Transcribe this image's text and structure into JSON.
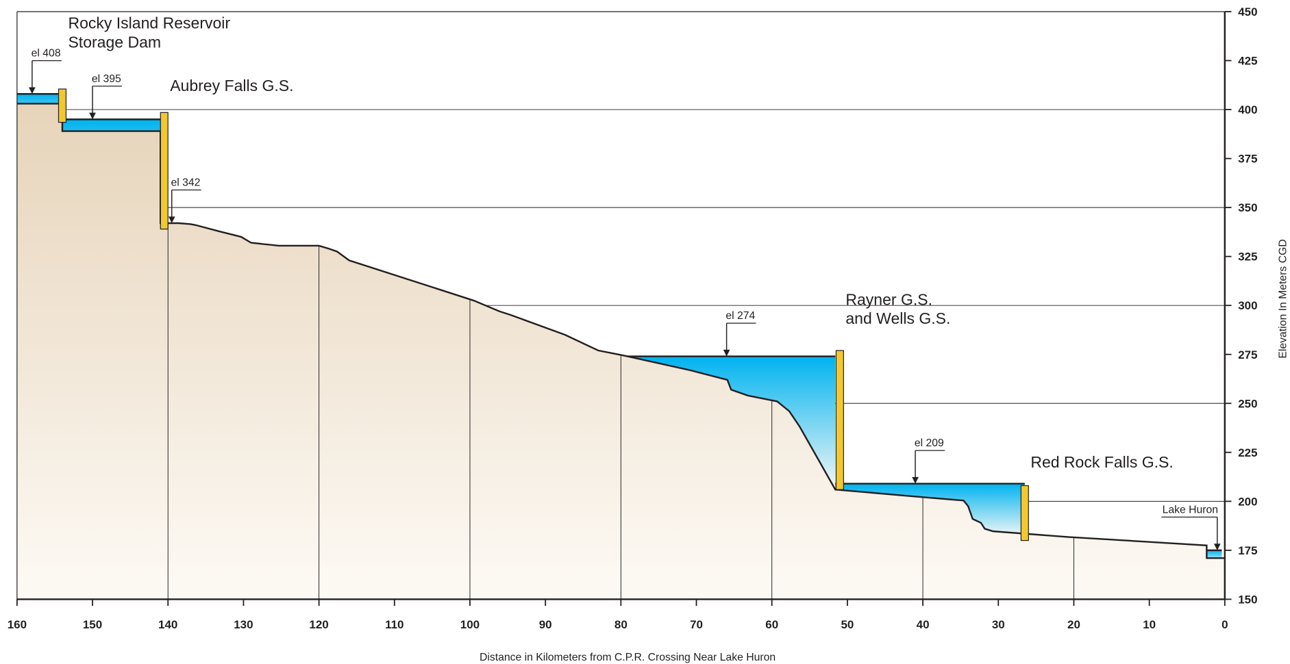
{
  "chart_data": {
    "type": "profile",
    "x_label": "Distance in Kilometers from C.P.R. Crossing Near Lake Huron",
    "y_label": "Elevation In Meters CGD",
    "xlim": [
      160,
      0
    ],
    "ylim": [
      150,
      450
    ],
    "xticks": [
      160,
      150,
      140,
      130,
      120,
      110,
      100,
      90,
      80,
      70,
      60,
      50,
      40,
      30,
      20,
      10,
      0
    ],
    "yticks": [
      150,
      175,
      200,
      225,
      250,
      275,
      300,
      325,
      350,
      375,
      400,
      425,
      450
    ],
    "grid_y": [
      400,
      350,
      300,
      250,
      200
    ],
    "grid_x": [
      140,
      120,
      100,
      80,
      60,
      40,
      20
    ],
    "terrain": {
      "color": "#e6d3b9",
      "x": [
        160,
        154,
        154,
        141,
        141,
        138.6,
        137,
        136.3,
        133.4,
        130.3,
        129,
        125.3,
        120,
        118.7,
        117.6,
        116,
        99.5,
        96.1,
        94.5,
        87.4,
        83,
        79.7,
        70.9,
        65.9,
        65.4,
        63.2,
        59.3,
        57.7,
        56.3,
        53.8,
        51.6,
        41.2,
        34.6,
        34,
        33.4,
        32.3,
        31.8,
        30.7,
        20.8,
        2.4,
        2.4,
        0
      ],
      "values": [
        403,
        403,
        389,
        389,
        342,
        342,
        341.5,
        341,
        338,
        335,
        332,
        330.5,
        330.5,
        329,
        327.5,
        323,
        302.5,
        297,
        295,
        285,
        277,
        274.5,
        267,
        262,
        257,
        254,
        251,
        246,
        238,
        221,
        206,
        202.5,
        200.4,
        197.5,
        191,
        189,
        186,
        184.7,
        181.8,
        177.5,
        171,
        171
      ]
    },
    "water_color": "#00b3f0",
    "dam_color": "#f2c830",
    "reservoirs": [
      {
        "label": "el 408",
        "level": 408,
        "from": 160,
        "to": 154,
        "arrow_x": 158
      },
      {
        "label": "el 395",
        "level": 395,
        "from": 154,
        "to": 141,
        "arrow_x": 150
      },
      {
        "label": "el 274",
        "level": 274,
        "from": 79.7,
        "to": 51.6,
        "arrow_x": 66
      },
      {
        "label": "el 209",
        "level": 209,
        "from": 51.6,
        "to": 26.5,
        "arrow_x": 41
      },
      {
        "label": "Lake Huron",
        "level": 175,
        "from": 2.4,
        "to": 0.4,
        "arrow_x": 1
      }
    ],
    "annotations": [
      {
        "label": "el 342",
        "x": 139.5,
        "value": 342
      }
    ],
    "dams": [
      {
        "name": [
          "Rocky Island Reservoir",
          "Storage Dam"
        ],
        "x": 154,
        "bottom": 393.5,
        "top": 410.5
      },
      {
        "name": [
          "Aubrey Falls G.S."
        ],
        "x": 140.5,
        "bottom": 339,
        "top": 398.5
      },
      {
        "name": [
          "Rayner G.S.",
          "and Wells G.S."
        ],
        "x": 51,
        "bottom": 206,
        "top": 277
      },
      {
        "name": [
          "Red Rock Falls G.S."
        ],
        "x": 26.5,
        "bottom": 180,
        "top": 208
      }
    ]
  }
}
